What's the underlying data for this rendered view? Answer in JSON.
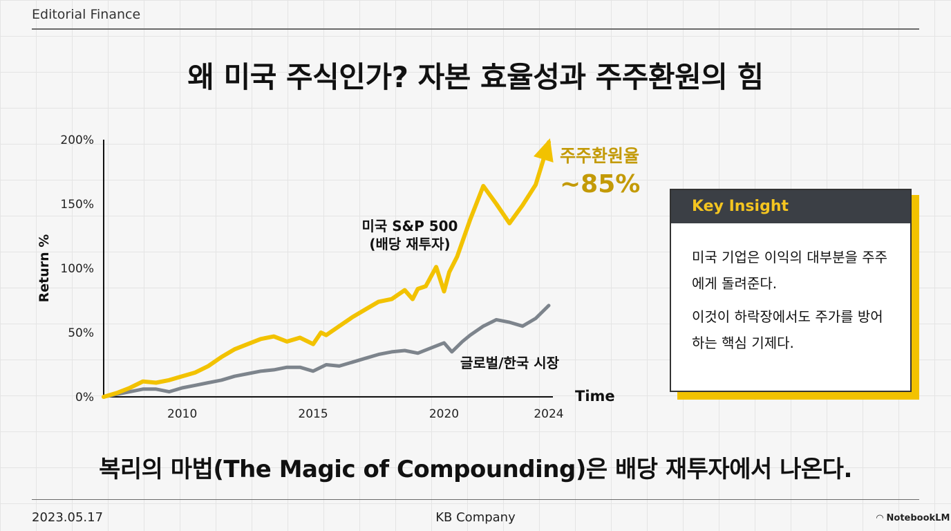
{
  "header": {
    "brand": "Editorial Finance"
  },
  "title": "왜 미국 주식인가? 자본 효율성과 주주환원의 힘",
  "chart_data": {
    "type": "line",
    "ylabel": "Return %",
    "xlabel": "Time",
    "xlim": [
      2007,
      2024
    ],
    "ylim": [
      0,
      200
    ],
    "y_ticks": [
      "0%",
      "50%",
      "100%",
      "150%",
      "200%"
    ],
    "x_ticks": [
      "2010",
      "2015",
      "2020",
      "2024"
    ],
    "series": [
      {
        "name": "미국 S&P 500",
        "name_line2": "(배당 재투자)",
        "color": "#f2c200",
        "x": [
          2007,
          2007.5,
          2008,
          2008.5,
          2009,
          2009.5,
          2010,
          2010.5,
          2011,
          2011.5,
          2012,
          2012.5,
          2013,
          2013.5,
          2014,
          2014.5,
          2015,
          2015.3,
          2015.5,
          2016,
          2016.5,
          2017,
          2017.5,
          2018,
          2018.5,
          2018.8,
          2019,
          2019.3,
          2019.7,
          2020,
          2020.2,
          2020.5,
          2021,
          2021.5,
          2022,
          2022.5,
          2023,
          2023.5,
          2024
        ],
        "y": [
          0,
          3,
          7,
          12,
          11,
          13,
          16,
          19,
          24,
          31,
          37,
          41,
          45,
          47,
          43,
          46,
          41,
          50,
          48,
          55,
          62,
          68,
          74,
          76,
          83,
          76,
          84,
          86,
          101,
          82,
          97,
          109,
          138,
          164,
          150,
          135,
          149,
          165,
          198
        ]
      },
      {
        "name": "글로벌/한국 시장",
        "color": "#7d848c",
        "x": [
          2007,
          2007.5,
          2008,
          2008.5,
          2009,
          2009.5,
          2010,
          2010.5,
          2011,
          2011.5,
          2012,
          2012.5,
          2013,
          2013.5,
          2014,
          2014.5,
          2015,
          2015.5,
          2016,
          2016.5,
          2017,
          2017.5,
          2018,
          2018.5,
          2019,
          2019.5,
          2020,
          2020.3,
          2020.7,
          2021,
          2021.5,
          2022,
          2022.5,
          2023,
          2023.5,
          2024
        ],
        "y": [
          0,
          2,
          4,
          6,
          6,
          4,
          7,
          9,
          11,
          13,
          16,
          18,
          20,
          21,
          23,
          23,
          20,
          25,
          24,
          27,
          30,
          33,
          35,
          36,
          34,
          38,
          42,
          35,
          43,
          48,
          55,
          60,
          58,
          55,
          61,
          71
        ]
      }
    ]
  },
  "callout": {
    "line1": "주주환원율",
    "line2": "~85%"
  },
  "insight": {
    "heading": "Key Insight",
    "p1": "미국 기업은 이익의 대부분을 주주에게 돌려준다.",
    "p2": "이것이 하락장에서도 주가를 방어하는 핵심 기제다."
  },
  "subtitle": "복리의 마법(The Magic of Compounding)은 배당 재투자에서 나온다.",
  "footer": {
    "date": "2023.05.17",
    "company": "KB Company",
    "badge": "NotebookLM"
  }
}
